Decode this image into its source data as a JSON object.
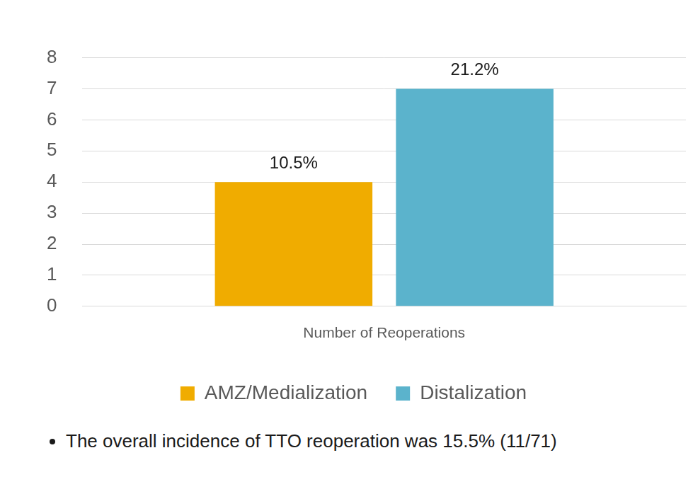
{
  "chart_data": {
    "type": "bar",
    "categories": [
      "Number of Reoperations"
    ],
    "series": [
      {
        "name": "AMZ/Medialization",
        "color": "#f0ac00",
        "values": [
          4
        ]
      },
      {
        "name": "Distalization",
        "color": "#5bb3cc",
        "values": [
          7
        ]
      }
    ],
    "ylim": [
      0,
      8
    ],
    "yticks": [
      0,
      1,
      2,
      3,
      4,
      5,
      6,
      7,
      8
    ],
    "grid": true,
    "legend": "bottom",
    "annotations": [
      {
        "text": "10.5%",
        "series": "AMZ/Medialization"
      },
      {
        "text": "21.2%",
        "series": "Distalization"
      }
    ],
    "footnote": "The overall incidence of TTO reoperation was 15.5% (11/71)"
  }
}
